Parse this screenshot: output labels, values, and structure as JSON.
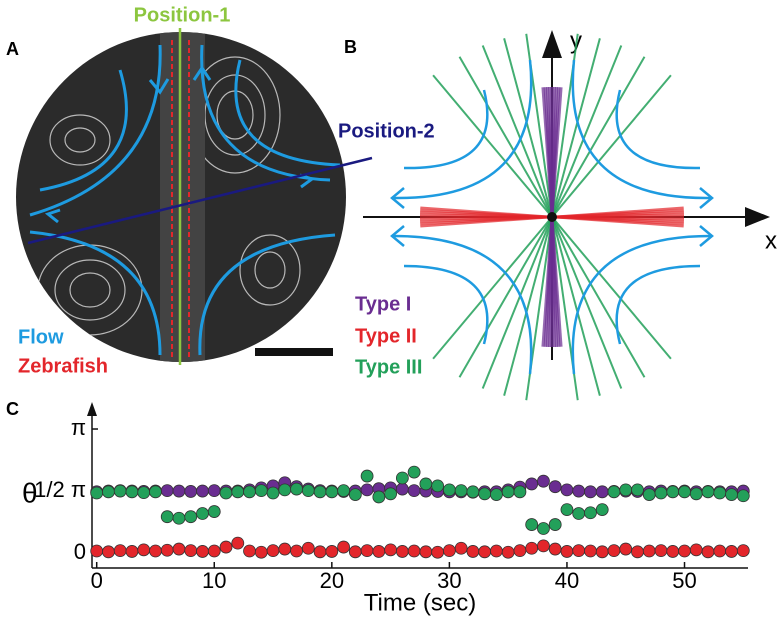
{
  "panels": {
    "a": {
      "label": "A",
      "position1": "Position-1",
      "position2": "Position-2",
      "flow": "Flow",
      "zebrafish": "Zebrafish"
    },
    "b": {
      "label": "B",
      "x_axis": "x",
      "y_axis": "y"
    },
    "c": {
      "label": "C"
    }
  },
  "chart_data": {
    "type": "scatter",
    "xlabel": "Time (sec)",
    "ylabel": "θ",
    "xlim": [
      -0.4,
      55.4
    ],
    "ylim": [
      -0.38,
      3.75
    ],
    "xticks": [
      0,
      10,
      20,
      30,
      40,
      50
    ],
    "yticks": [
      0,
      {
        "value": 1.5708,
        "label": "1/2 π"
      },
      {
        "value": 3.1416,
        "label": "π"
      }
    ],
    "x": [
      0,
      1,
      2,
      3,
      4,
      5,
      6,
      7,
      8,
      9,
      10,
      11,
      12,
      13,
      14,
      15,
      16,
      17,
      18,
      19,
      20,
      21,
      22,
      23,
      24,
      25,
      26,
      27,
      28,
      29,
      30,
      31,
      32,
      33,
      34,
      35,
      36,
      37,
      38,
      39,
      40,
      41,
      42,
      43,
      44,
      45,
      46,
      47,
      48,
      49,
      50,
      51,
      52,
      53,
      54,
      55
    ],
    "series": [
      {
        "name": "Type I",
        "color": "#6a2d91",
        "values": [
          1.55,
          1.57,
          1.58,
          1.57,
          1.56,
          1.57,
          1.58,
          1.57,
          1.56,
          1.57,
          1.58,
          1.57,
          1.57,
          1.6,
          1.65,
          1.7,
          1.78,
          1.68,
          1.62,
          1.58,
          1.57,
          1.56,
          1.57,
          1.6,
          1.63,
          1.65,
          1.62,
          1.58,
          1.57,
          1.56,
          1.55,
          1.55,
          1.54,
          1.55,
          1.55,
          1.6,
          1.67,
          1.75,
          1.82,
          1.68,
          1.6,
          1.57,
          1.55,
          1.55,
          1.56,
          1.57,
          1.56,
          1.55,
          1.57,
          1.56,
          1.57,
          1.55,
          1.56,
          1.55,
          1.55,
          1.57
        ]
      },
      {
        "name": "Type II",
        "color": "#e3262b",
        "values": [
          0.05,
          0.03,
          0.06,
          0.04,
          0.08,
          0.05,
          0.07,
          0.1,
          0.06,
          0.04,
          0.05,
          0.15,
          0.25,
          0.05,
          0.02,
          0.06,
          0.1,
          0.05,
          0.12,
          0.03,
          0.04,
          0.15,
          0.03,
          0.06,
          0.04,
          0.08,
          0.04,
          0.05,
          0.03,
          0.02,
          0.06,
          0.12,
          0.04,
          0.03,
          0.05,
          0.02,
          0.06,
          0.12,
          0.18,
          0.1,
          0.04,
          0.06,
          0.05,
          0.03,
          0.06,
          0.1,
          0.03,
          0.05,
          0.06,
          0.04,
          0.05,
          0.08,
          0.03,
          0.05,
          0.04,
          0.06
        ]
      },
      {
        "name": "Type III",
        "color": "#23a05a",
        "values": [
          1.52,
          1.55,
          1.57,
          1.55,
          1.53,
          1.55,
          0.92,
          0.88,
          0.92,
          1.0,
          1.05,
          1.52,
          1.55,
          1.55,
          1.58,
          1.52,
          1.6,
          1.62,
          1.58,
          1.55,
          1.55,
          1.58,
          1.48,
          1.95,
          1.42,
          1.5,
          1.9,
          2.05,
          1.75,
          1.7,
          1.6,
          1.58,
          1.55,
          1.5,
          1.48,
          1.55,
          1.55,
          0.72,
          0.62,
          0.72,
          1.1,
          1.0,
          1.02,
          1.1,
          1.55,
          1.6,
          1.6,
          1.48,
          1.52,
          1.55,
          1.55,
          1.5,
          1.55,
          1.52,
          1.48,
          1.45
        ]
      }
    ]
  }
}
